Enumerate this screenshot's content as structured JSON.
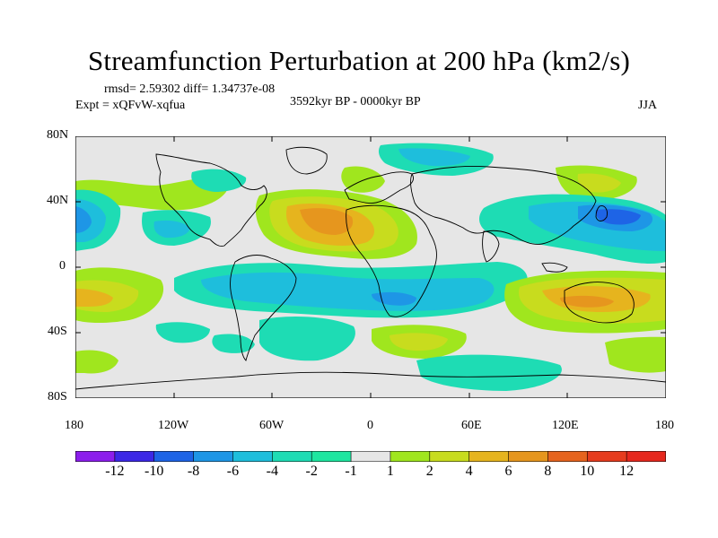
{
  "title": "Streamfunction Perturbation at 200 hPa (km2/s)",
  "stats": "rmsd= 2.59302 diff= 1.34737e-08",
  "experiment": "Expt = xQFvW-xqfua",
  "period": "3592kyr BP - 0000kyr BP",
  "season": "JJA",
  "map": {
    "lat_ticks": [
      "80N",
      "40N",
      "0",
      "40S",
      "80S"
    ],
    "lon_ticks": [
      "180",
      "120W",
      "60W",
      "0",
      "60E",
      "120E",
      "180"
    ],
    "features": [
      {
        "label": "N Pacific negative",
        "lon": -180,
        "lat": 33,
        "level": -6
      },
      {
        "label": "N Pacific negative",
        "lon": -170,
        "lat": 28,
        "level": -4
      },
      {
        "label": "SE Pacific positive",
        "lon": -180,
        "lat": -28,
        "level": 8
      },
      {
        "label": "SE Pacific positive",
        "lon": -163,
        "lat": -30,
        "level": 4
      },
      {
        "label": "N Atlantic high",
        "lon": -27,
        "lat": 33,
        "level": 8
      },
      {
        "label": "N Atlantic high",
        "lon": -27,
        "lat": 33,
        "level": 6
      },
      {
        "label": "N Atlantic high",
        "lon": -30,
        "lat": 33,
        "level": 4
      },
      {
        "label": "Asian low",
        "lon": 155,
        "lat": 28,
        "level": -8
      },
      {
        "label": "Asian low",
        "lon": 145,
        "lat": 30,
        "level": -4
      },
      {
        "label": "Australian high",
        "lon": 135,
        "lat": -22,
        "level": 6
      },
      {
        "label": "Australian high",
        "lon": 125,
        "lat": -24,
        "level": 4
      },
      {
        "label": "Southern band low",
        "lon": 30,
        "lat": -28,
        "level": -4
      },
      {
        "label": "Southern band low",
        "lon": -55,
        "lat": -25,
        "level": -4
      }
    ]
  },
  "colorbar": {
    "labels": [
      "-12",
      "-10",
      "-8",
      "-6",
      "-4",
      "-2",
      "-1",
      "1",
      "2",
      "4",
      "6",
      "8",
      "10",
      "12"
    ],
    "colors": [
      "#8c1eec",
      "#3c28e6",
      "#1e64e6",
      "#1e96e6",
      "#1ebedc",
      "#1edcb4",
      "#1ee6a0",
      "#e6e6e6",
      "#a0e61e",
      "#c8dc1e",
      "#e6b41e",
      "#e6961e",
      "#e6641e",
      "#e63c1e",
      "#e6281e"
    ]
  }
}
